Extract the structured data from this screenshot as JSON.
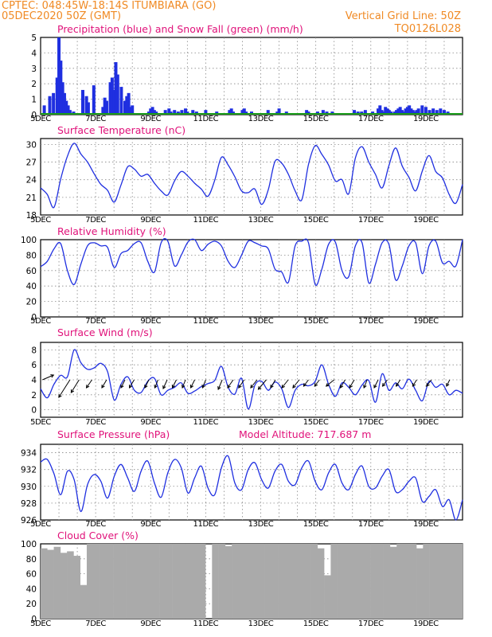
{
  "header": {
    "line1": "CPTEC:   048:45W-18:14S  ITUMBIARA (GO)",
    "line2": "05DEC2020 50Z (GMT)",
    "grid_note": "Vertical Grid Line: 50Z",
    "code": "TQ0126L028"
  },
  "colors": {
    "header": "#f08a24",
    "title": "#e0127a",
    "line": "#1f2fe0",
    "snow": "#1a9c1a",
    "cloud": "#aaaaaa",
    "grid": "#888888"
  },
  "chart_data": [
    {
      "type": "bar",
      "title": "Precipitation (blue) and Snow Fall (green) (mm/h)",
      "ylim": [
        0,
        5
      ],
      "yticks": [
        0,
        1,
        2,
        3,
        4,
        5
      ],
      "xticks": [
        "5DEC",
        "7DEC",
        "9DEC",
        "11DEC",
        "13DEC",
        "15DEC",
        "17DEC",
        "19DEC"
      ],
      "x": [
        0.2,
        0.5,
        0.7,
        0.9,
        1.0,
        1.1,
        1.2,
        1.3,
        1.4,
        1.5,
        1.6,
        1.8,
        2.3,
        2.5,
        2.6,
        2.9,
        3.4,
        3.5,
        3.6,
        3.8,
        3.9,
        4.0,
        4.1,
        4.2,
        4.4,
        4.6,
        4.7,
        4.8,
        4.9,
        5.0,
        5.9,
        6.0,
        6.1,
        6.2,
        6.3,
        6.5,
        6.8,
        7.0,
        7.1,
        7.2,
        7.3,
        7.5,
        7.6,
        7.7,
        7.9,
        8.0,
        8.3,
        8.4,
        8.5,
        8.6,
        9.0,
        9.6,
        10.3,
        10.4,
        10.5,
        11.0,
        11.1,
        11.2,
        11.4,
        11.5,
        12.4,
        12.9,
        13.0,
        13.4,
        14.4,
        14.5,
        14.6,
        14.8,
        15.1,
        15.2,
        15.4,
        15.6,
        15.8,
        15.9,
        17.1,
        17.3,
        17.4,
        17.5,
        17.7,
        17.9,
        18.1,
        18.4,
        18.5,
        18.6,
        18.7,
        18.8,
        18.9,
        19.0,
        19.1,
        19.2,
        19.3,
        19.4,
        19.5,
        19.6,
        19.7,
        19.8,
        19.9,
        20.0,
        20.1,
        20.2,
        20.3,
        20.4,
        20.5,
        20.6,
        20.8,
        21.0,
        21.2,
        21.4,
        21.6,
        21.8,
        22.0,
        22.2
      ],
      "values": [
        0.6,
        1.2,
        1.4,
        2.4,
        5.0,
        3.5,
        2.1,
        1.4,
        0.9,
        0.6,
        0.3,
        0.2,
        1.6,
        1.2,
        0.8,
        1.9,
        0.5,
        1.1,
        0.9,
        2.1,
        2.4,
        1.6,
        3.4,
        2.6,
        1.8,
        0.9,
        1.2,
        1.4,
        0.5,
        0.6,
        0.2,
        0.4,
        0.5,
        0.3,
        0.2,
        0.1,
        0.3,
        0.4,
        0.2,
        0.1,
        0.3,
        0.2,
        0.1,
        0.3,
        0.4,
        0.2,
        0.3,
        0.1,
        0.2,
        0.1,
        0.3,
        0.2,
        0.3,
        0.4,
        0.2,
        0.3,
        0.4,
        0.2,
        0.1,
        0.2,
        0.3,
        0.2,
        0.4,
        0.2,
        0.1,
        0.3,
        0.2,
        0.1,
        0.2,
        0.1,
        0.3,
        0.2,
        0.1,
        0.2,
        0.3,
        0.2,
        0.1,
        0.2,
        0.3,
        0.1,
        0.2,
        0.4,
        0.6,
        0.3,
        0.2,
        0.5,
        0.4,
        0.3,
        0.2,
        0.1,
        0.2,
        0.3,
        0.4,
        0.5,
        0.3,
        0.2,
        0.4,
        0.5,
        0.6,
        0.4,
        0.3,
        0.2,
        0.3,
        0.4,
        0.6,
        0.5,
        0.3,
        0.4,
        0.3,
        0.4,
        0.3,
        0.2
      ]
    },
    {
      "type": "line",
      "title": "Surface Temperature (nC)",
      "ylim": [
        18,
        31
      ],
      "yticks": [
        18,
        21,
        24,
        27,
        30
      ],
      "xticks": [
        "5DEC",
        "7DEC",
        "9DEC",
        "11DEC",
        "13DEC",
        "15DEC",
        "17DEC",
        "19DEC"
      ],
      "x": [
        0,
        1,
        2,
        3,
        4,
        5,
        6,
        7,
        8,
        9,
        10,
        11,
        12,
        13,
        14,
        15,
        16,
        17,
        18,
        19,
        20,
        21,
        22,
        23,
        24,
        25,
        26,
        27,
        28,
        29,
        30,
        31,
        32,
        33,
        34,
        35,
        36,
        37,
        38,
        39,
        40,
        41,
        42,
        43,
        44,
        45,
        46,
        47,
        48,
        49,
        50,
        51,
        52,
        53,
        54,
        55,
        56,
        57,
        58,
        59,
        60,
        61,
        62,
        63
      ],
      "values": [
        22.6,
        21.5,
        19.3,
        24.1,
        28.0,
        30.2,
        28.4,
        27.0,
        25.0,
        23.2,
        22.2,
        20.2,
        23.1,
        26.2,
        25.8,
        24.6,
        24.9,
        23.4,
        22.1,
        21.4,
        23.8,
        25.4,
        24.6,
        23.4,
        22.4,
        21.2,
        23.9,
        27.8,
        26.5,
        24.5,
        22.1,
        21.8,
        22.4,
        19.8,
        22.3,
        27.1,
        26.8,
        24.9,
        22.1,
        20.6,
        26.6,
        29.8,
        28.3,
        26.5,
        23.8,
        24.0,
        21.6,
        27.7,
        29.6,
        27.0,
        24.9,
        22.6,
        26.4,
        29.4,
        26.3,
        24.4,
        22.1,
        25.5,
        28.1,
        25.4,
        24.3,
        21.5,
        20.0,
        23.2
      ]
    },
    {
      "type": "line",
      "title": "Relative Humidity (%)",
      "ylim": [
        0,
        100
      ],
      "yticks": [
        0,
        20,
        40,
        60,
        80,
        100
      ],
      "xticks": [
        "5DEC",
        "7DEC",
        "9DEC",
        "11DEC",
        "13DEC",
        "15DEC",
        "17DEC",
        "19DEC"
      ],
      "x": [
        0,
        1,
        2,
        3,
        4,
        5,
        6,
        7,
        8,
        9,
        10,
        11,
        12,
        13,
        14,
        15,
        16,
        17,
        18,
        19,
        20,
        21,
        22,
        23,
        24,
        25,
        26,
        27,
        28,
        29,
        30,
        31,
        32,
        33,
        34,
        35,
        36,
        37,
        38,
        39,
        40,
        41,
        42,
        43,
        44,
        45,
        46,
        47,
        48,
        49,
        50,
        51,
        52,
        53,
        54,
        55,
        56,
        57,
        58,
        59,
        60,
        61,
        62,
        63
      ],
      "values": [
        65,
        72,
        88,
        95,
        60,
        42,
        68,
        92,
        96,
        92,
        90,
        64,
        82,
        86,
        95,
        96,
        72,
        58,
        96,
        98,
        66,
        80,
        97,
        100,
        86,
        94,
        98,
        92,
        72,
        64,
        80,
        98,
        96,
        92,
        88,
        62,
        58,
        45,
        92,
        98,
        96,
        42,
        62,
        94,
        97,
        60,
        52,
        92,
        96,
        44,
        68,
        96,
        94,
        48,
        66,
        92,
        96,
        56,
        92,
        98,
        70,
        72,
        66,
        100
      ]
    },
    {
      "type": "line",
      "title": "Surface Wind (m/s)",
      "ylim": [
        -1,
        9
      ],
      "yticks": [
        0,
        2,
        4,
        6,
        8
      ],
      "xticks": [
        "5DEC",
        "7DEC",
        "9DEC",
        "11DEC",
        "13DEC",
        "15DEC",
        "17DEC",
        "19DEC"
      ],
      "x": [
        0,
        1,
        2,
        3,
        4,
        5,
        6,
        7,
        8,
        9,
        10,
        11,
        12,
        13,
        14,
        15,
        16,
        17,
        18,
        19,
        20,
        21,
        22,
        23,
        24,
        25,
        26,
        27,
        28,
        29,
        30,
        31,
        32,
        33,
        34,
        35,
        36,
        37,
        38,
        39,
        40,
        41,
        42,
        43,
        44,
        45,
        46,
        47,
        48,
        49,
        50,
        51,
        52,
        53,
        54,
        55,
        56,
        57,
        58,
        59,
        60,
        61,
        62,
        63
      ],
      "values": [
        2.8,
        1.6,
        3.4,
        4.6,
        4.4,
        8.0,
        6.3,
        5.4,
        5.6,
        6.2,
        5.1,
        1.3,
        3.4,
        4.4,
        2.6,
        2.3,
        3.8,
        4.2,
        2.0,
        2.6,
        3.0,
        3.6,
        2.2,
        2.5,
        3.1,
        3.5,
        3.9,
        5.8,
        3.0,
        2.1,
        4.2,
        0.1,
        3.3,
        3.8,
        2.6,
        3.7,
        2.8,
        0.3,
        2.6,
        3.4,
        3.2,
        3.8,
        6.0,
        3.4,
        1.8,
        3.6,
        3.0,
        2.0,
        3.3,
        3.9,
        1.0,
        4.8,
        2.6,
        3.6,
        2.8,
        4.1,
        2.6,
        1.2,
        3.8,
        3.0,
        3.4,
        2.0,
        2.6,
        2.2
      ],
      "barbs_note": "direction arrows plotted along y=4"
    },
    {
      "type": "line",
      "title": "Surface Pressure (hPa)",
      "subtitle": "Model Altitude: 717.687 m",
      "ylim": [
        926,
        935
      ],
      "yticks": [
        926,
        928,
        930,
        932,
        934
      ],
      "xticks": [
        "5DEC",
        "7DEC",
        "9DEC",
        "11DEC",
        "13DEC",
        "15DEC",
        "17DEC",
        "19DEC"
      ],
      "x": [
        0,
        1,
        2,
        3,
        4,
        5,
        6,
        7,
        8,
        9,
        10,
        11,
        12,
        13,
        14,
        15,
        16,
        17,
        18,
        19,
        20,
        21,
        22,
        23,
        24,
        25,
        26,
        27,
        28,
        29,
        30,
        31,
        32,
        33,
        34,
        35,
        36,
        37,
        38,
        39,
        40,
        41,
        42,
        43,
        44,
        45,
        46,
        47,
        48,
        49,
        50,
        51,
        52,
        53,
        54,
        55,
        56,
        57,
        58,
        59,
        60,
        61,
        62,
        63
      ],
      "values": [
        932.9,
        933.2,
        931.5,
        929.0,
        931.8,
        930.8,
        927.0,
        930.2,
        931.4,
        930.6,
        928.6,
        931.2,
        932.6,
        931.0,
        929.4,
        931.8,
        933.0,
        930.4,
        928.7,
        931.6,
        933.2,
        932.2,
        929.2,
        931.0,
        932.4,
        929.8,
        929.0,
        932.2,
        933.6,
        930.4,
        929.6,
        932.0,
        932.8,
        930.8,
        929.8,
        931.8,
        932.6,
        930.6,
        930.2,
        932.2,
        933.0,
        930.6,
        929.6,
        931.6,
        932.6,
        930.4,
        929.6,
        931.4,
        932.4,
        930.0,
        929.8,
        931.2,
        932.0,
        929.4,
        929.6,
        930.6,
        931.0,
        928.2,
        928.8,
        929.6,
        927.6,
        928.4,
        926.0,
        928.4
      ]
    },
    {
      "type": "bar",
      "title": "Cloud Cover (%)",
      "ylim": [
        0,
        100
      ],
      "yticks": [
        0,
        20,
        40,
        60,
        80,
        100
      ],
      "xticks": [
        "5DEC",
        "7DEC",
        "9DEC",
        "11DEC",
        "13DEC",
        "15DEC",
        "17DEC",
        "19DEC"
      ],
      "x": [
        0,
        1,
        2,
        3,
        4,
        5,
        6,
        7,
        8,
        9,
        10,
        11,
        12,
        13,
        14,
        15,
        16,
        17,
        18,
        19,
        20,
        21,
        22,
        23,
        24,
        25,
        26,
        27,
        28,
        29,
        30,
        31,
        32,
        33,
        34,
        35,
        36,
        37,
        38,
        39,
        40,
        41,
        42,
        43,
        44,
        45,
        46,
        47,
        48,
        49,
        50,
        51,
        52,
        53,
        54,
        55,
        56,
        57,
        58,
        59,
        60,
        61,
        62,
        63
      ],
      "values": [
        94,
        92,
        96,
        88,
        90,
        84,
        45,
        100,
        100,
        100,
        100,
        100,
        100,
        100,
        100,
        100,
        100,
        100,
        100,
        100,
        100,
        100,
        100,
        100,
        100,
        0,
        100,
        100,
        97,
        100,
        100,
        100,
        100,
        100,
        100,
        100,
        100,
        100,
        100,
        100,
        100,
        100,
        94,
        58,
        100,
        100,
        100,
        100,
        100,
        100,
        100,
        100,
        100,
        96,
        100,
        100,
        100,
        94,
        100,
        100,
        100,
        100,
        100,
        100
      ]
    }
  ]
}
